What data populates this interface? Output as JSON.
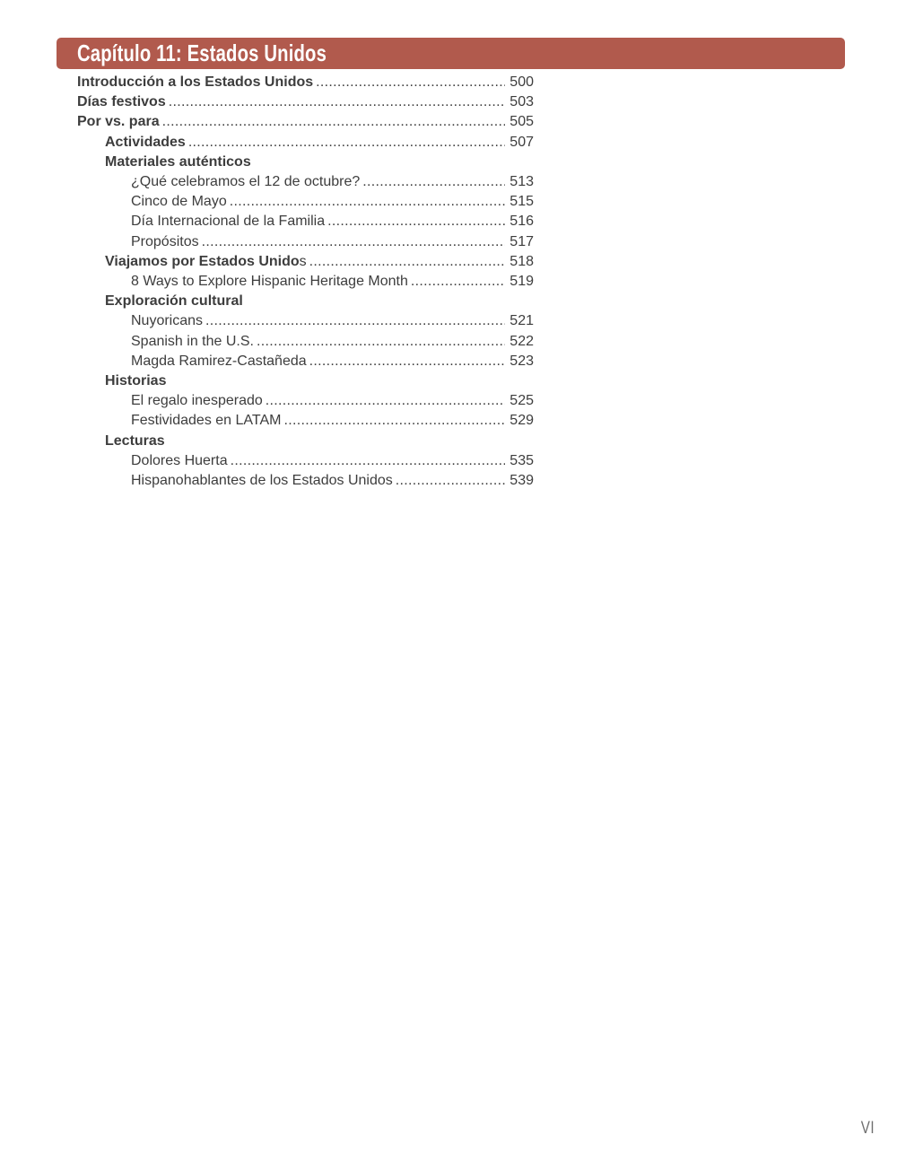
{
  "header": {
    "title": "Capítulo 11: Estados Unidos",
    "bar_color": "#b15a4d"
  },
  "toc": {
    "leader_char": ".",
    "items": [
      {
        "label": "Introducción a los Estados Unidos",
        "page": "500",
        "level": 0,
        "bold": true
      },
      {
        "label": "Días festivos",
        "page": "503",
        "level": 0,
        "bold": true
      },
      {
        "label": "Por vs. para",
        "page": "505",
        "level": 0,
        "bold": true
      },
      {
        "label": "Actividades",
        "page": "507",
        "level": 1,
        "bold": true
      },
      {
        "label": "Materiales auténticos",
        "page": "",
        "level": 1,
        "bold": true
      },
      {
        "label": "¿Qué celebramos el 12 de octubre?",
        "page": "513",
        "level": 2,
        "bold": false
      },
      {
        "label": "Cinco de Mayo",
        "page": "515",
        "level": 2,
        "bold": false
      },
      {
        "label": "Día Internacional de la Familia",
        "page": "516",
        "level": 2,
        "bold": false
      },
      {
        "label": "Propósitos",
        "page": "517",
        "level": 2,
        "bold": false
      },
      {
        "label": "Viajamos por Estados Unido",
        "suffix": "s",
        "page": "518",
        "level": 1,
        "bold": true
      },
      {
        "label": "8 Ways to Explore Hispanic Heritage Month",
        "page": "519",
        "level": 2,
        "bold": false
      },
      {
        "label": "Exploración cultural",
        "page": "",
        "level": 1,
        "bold": true
      },
      {
        "label": "Nuyoricans",
        "page": "521",
        "level": 2,
        "bold": false
      },
      {
        "label": "Spanish in the U.S.",
        "page": "522",
        "level": 2,
        "bold": false
      },
      {
        "label": "Magda Ramirez-Castañeda",
        "page": "523",
        "level": 2,
        "bold": false
      },
      {
        "label": "Historias",
        "page": "",
        "level": 1,
        "bold": true
      },
      {
        "label": "El regalo inesperado",
        "page": "525",
        "level": 2,
        "bold": false
      },
      {
        "label": "Festividades en LATAM",
        "page": "529",
        "level": 2,
        "bold": false
      },
      {
        "label": "Lecturas",
        "page": "",
        "level": 1,
        "bold": true
      },
      {
        "label": "Dolores Huerta",
        "page": "535",
        "level": 2,
        "bold": false
      },
      {
        "label": "Hispanohablantes de los Estados Unidos",
        "page": "539",
        "level": 2,
        "bold": false
      }
    ]
  },
  "footer": {
    "page_number": "VI"
  }
}
